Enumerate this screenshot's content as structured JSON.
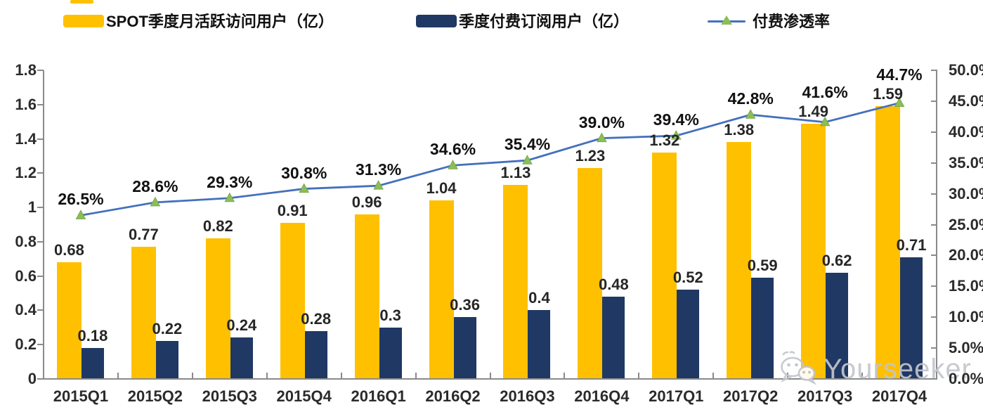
{
  "legend": {
    "items": [
      {
        "label": "SPOT季度月活跃访问用户（亿）",
        "swatch": "bar",
        "color": "#FFC000"
      },
      {
        "label": "季度付费订阅用户（亿）",
        "swatch": "bar",
        "color": "#1F3864"
      },
      {
        "label": "付费渗透率",
        "swatch": "line-with-triangle-marker",
        "line_color": "#4470BE",
        "marker_color": "#8CBE56"
      }
    ]
  },
  "watermark": {
    "text": "Yourseeker",
    "icon": "wechat-icon",
    "color": "#c3c6cb"
  },
  "chart_data": {
    "type": "combo-bar-line",
    "title": "",
    "categories": [
      "2015Q1",
      "2015Q2",
      "2015Q3",
      "2015Q4",
      "2016Q1",
      "2016Q2",
      "2016Q3",
      "2016Q4",
      "2017Q1",
      "2017Q2",
      "2017Q3",
      "2017Q4"
    ],
    "series": [
      {
        "name": "SPOT季度月活跃访问用户（亿）",
        "type": "bar",
        "axis": "left",
        "color": "#FFC000",
        "values": [
          0.68,
          0.77,
          0.82,
          0.91,
          0.96,
          1.04,
          1.13,
          1.23,
          1.32,
          1.38,
          1.49,
          1.59
        ],
        "labels": [
          "0.68",
          "0.77",
          "0.82",
          "0.91",
          "0.96",
          "1.04",
          "1.13",
          "1.23",
          "1.32",
          "1.38",
          "1.49",
          "1.59"
        ]
      },
      {
        "name": "季度付费订阅用户（亿）",
        "type": "bar",
        "axis": "left",
        "color": "#1F3864",
        "values": [
          0.18,
          0.22,
          0.24,
          0.28,
          0.3,
          0.36,
          0.4,
          0.48,
          0.52,
          0.59,
          0.62,
          0.71
        ],
        "labels": [
          "0.18",
          "0.22",
          "0.24",
          "0.28",
          "0.3",
          "0.36",
          "0.4",
          "0.48",
          "0.52",
          "0.59",
          "0.62",
          "0.71"
        ]
      },
      {
        "name": "付费渗透率",
        "type": "line",
        "axis": "right",
        "color": "#4470BE",
        "marker": "triangle",
        "marker_color": "#8CBE56",
        "values": [
          26.5,
          28.6,
          29.3,
          30.8,
          31.3,
          34.6,
          35.4,
          39.0,
          39.4,
          42.8,
          41.6,
          44.7
        ],
        "labels": [
          "26.5%",
          "28.6%",
          "29.3%",
          "30.8%",
          "31.3%",
          "34.6%",
          "35.4%",
          "39.0%",
          "39.4%",
          "42.8%",
          "41.6%",
          "44.7%"
        ]
      }
    ],
    "left_axis": {
      "min": 0,
      "max": 1.8,
      "step": 0.2,
      "ticks": [
        "0",
        "0.2",
        "0.4",
        "0.6",
        "0.8",
        "1",
        "1.2",
        "1.4",
        "1.6",
        "1.8"
      ]
    },
    "right_axis": {
      "min": 0,
      "max": 50,
      "step": 5,
      "ticks": [
        "0.0%",
        "5.0%",
        "10.0%",
        "15.0%",
        "20.0%",
        "25.0%",
        "30.0%",
        "35.0%",
        "40.0%",
        "45.0%",
        "50.0%"
      ]
    },
    "grid": false,
    "legend_position": "top"
  }
}
